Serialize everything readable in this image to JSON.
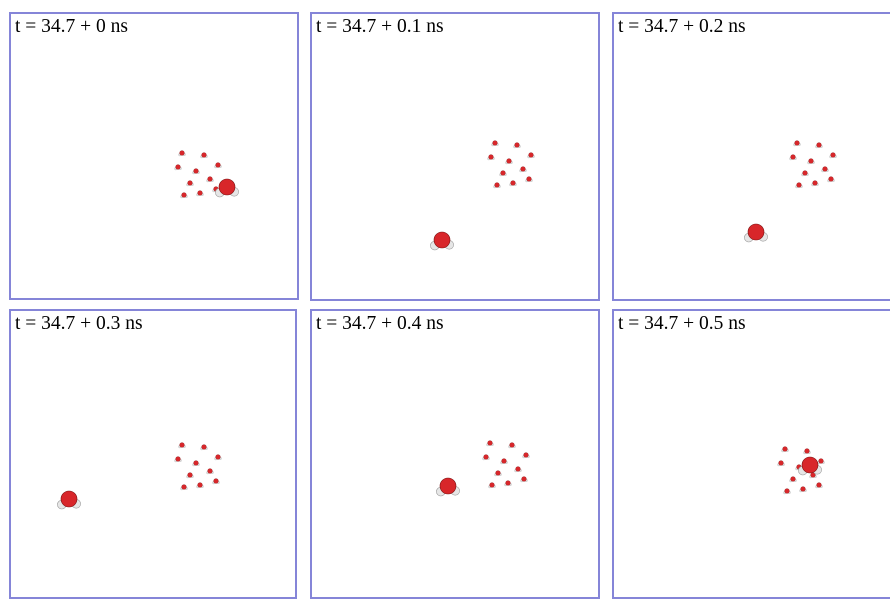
{
  "panels": [
    {
      "id": "p0",
      "label": "t = 34.7 + 0 ns"
    },
    {
      "id": "p1",
      "label": "t = 34.7 + 0.1 ns"
    },
    {
      "id": "p2",
      "label": "t = 34.7 + 0.2 ns"
    },
    {
      "id": "p3",
      "label": "t = 34.7 + 0.3 ns"
    },
    {
      "id": "p4",
      "label": "t = 34.7 + 0.4 ns"
    },
    {
      "id": "p5",
      "label": "t = 34.7 + 0.5 ns"
    }
  ],
  "colors": {
    "frame_border": "#8585d8",
    "oxygen": "#d8262a",
    "hydrogen": "#e6e6e6"
  }
}
